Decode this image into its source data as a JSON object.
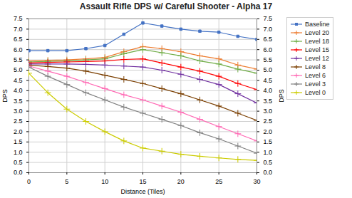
{
  "chart_data": {
    "type": "line",
    "title": "Assault Rifle DPS w/ Careful Shooter - Alpha 17",
    "xlabel": "Distance (Tiles)",
    "ylabel": "DPS",
    "y2label": "DPS",
    "x": [
      0,
      2.5,
      5,
      7.5,
      10,
      12.5,
      15,
      17.5,
      20,
      22.5,
      25,
      27.5,
      30
    ],
    "series": [
      {
        "name": "Baseline",
        "color": "#4472C4",
        "marker": "square",
        "values": [
          5.95,
          5.95,
          5.95,
          6.05,
          6.2,
          6.75,
          7.3,
          7.15,
          7.0,
          6.9,
          6.85,
          6.65,
          6.5
        ]
      },
      {
        "name": "Level 20",
        "color": "#ED7D31",
        "marker": "plus",
        "values": [
          5.45,
          5.48,
          5.5,
          5.55,
          5.62,
          5.9,
          6.15,
          6.05,
          5.9,
          5.7,
          5.55,
          5.25,
          5.05
        ]
      },
      {
        "name": "Level 18",
        "color": "#70AD47",
        "marker": "plus",
        "values": [
          5.4,
          5.43,
          5.45,
          5.5,
          5.55,
          5.8,
          6.0,
          5.85,
          5.7,
          5.45,
          5.3,
          5.05,
          4.85
        ]
      },
      {
        "name": "Level 15",
        "color": "#FF0000",
        "marker": "plus",
        "values": [
          5.35,
          5.38,
          5.4,
          5.42,
          5.45,
          5.52,
          5.55,
          5.35,
          5.15,
          4.95,
          4.7,
          4.35,
          4.05
        ]
      },
      {
        "name": "Level 12",
        "color": "#7030A0",
        "marker": "plus",
        "values": [
          5.3,
          5.3,
          5.3,
          5.28,
          5.25,
          5.2,
          5.15,
          5.0,
          4.8,
          4.55,
          4.3,
          3.85,
          3.4
        ]
      },
      {
        "name": "Level 8",
        "color": "#7B3F00",
        "marker": "plus",
        "values": [
          5.25,
          5.18,
          5.1,
          4.95,
          4.75,
          4.55,
          4.35,
          4.1,
          3.85,
          3.55,
          3.25,
          2.9,
          2.55
        ]
      },
      {
        "name": "Level 6",
        "color": "#FF69B4",
        "marker": "plus",
        "values": [
          5.2,
          4.95,
          4.7,
          4.4,
          4.1,
          3.8,
          3.55,
          3.25,
          2.95,
          2.6,
          2.25,
          1.9,
          1.55
        ]
      },
      {
        "name": "Level 3",
        "color": "#808080",
        "marker": "plus",
        "values": [
          5.15,
          4.7,
          4.3,
          3.9,
          3.55,
          3.2,
          2.9,
          2.6,
          2.3,
          1.95,
          1.65,
          1.3,
          0.95
        ]
      },
      {
        "name": "Level 0",
        "color": "#CCCC00",
        "marker": "plus",
        "values": [
          4.85,
          3.9,
          3.1,
          2.5,
          2.0,
          1.55,
          1.2,
          1.05,
          0.9,
          0.8,
          0.72,
          0.65,
          0.6
        ]
      }
    ],
    "xlim": [
      0,
      30
    ],
    "xticks": [
      0,
      5,
      10,
      15,
      20,
      25,
      30
    ],
    "ylim": [
      0,
      7.5
    ],
    "yticks": [
      {
        "value": 0,
        "label": "0.0"
      },
      0.5,
      {
        "value": 1,
        "label": "1.0"
      },
      1.5,
      {
        "value": 2,
        "label": "2.0"
      },
      2.5,
      {
        "value": 3,
        "label": "3.0"
      },
      3.5,
      {
        "value": 4,
        "label": "4.0"
      },
      4.5,
      {
        "value": 5,
        "label": "5.0"
      },
      5.5,
      {
        "value": 6,
        "label": "6.0"
      },
      6.5,
      {
        "value": 7,
        "label": "7.0"
      },
      7.5
    ],
    "y2lim": [
      0,
      7.5
    ],
    "y2ticks": [
      {
        "value": 0,
        "label": "0.0"
      },
      0.5,
      {
        "value": 1,
        "label": "1.0"
      },
      1.5,
      {
        "value": 2,
        "label": "2.0"
      },
      2.5,
      {
        "value": 3,
        "label": "3.0"
      },
      3.5,
      {
        "value": 4,
        "label": "4.0"
      },
      4.5,
      {
        "value": 5,
        "label": "5.0"
      },
      5.5,
      {
        "value": 6,
        "label": "6.0"
      },
      6.5,
      {
        "value": 7,
        "label": "7.0"
      },
      7.5
    ],
    "grid": true,
    "legend": "right"
  }
}
